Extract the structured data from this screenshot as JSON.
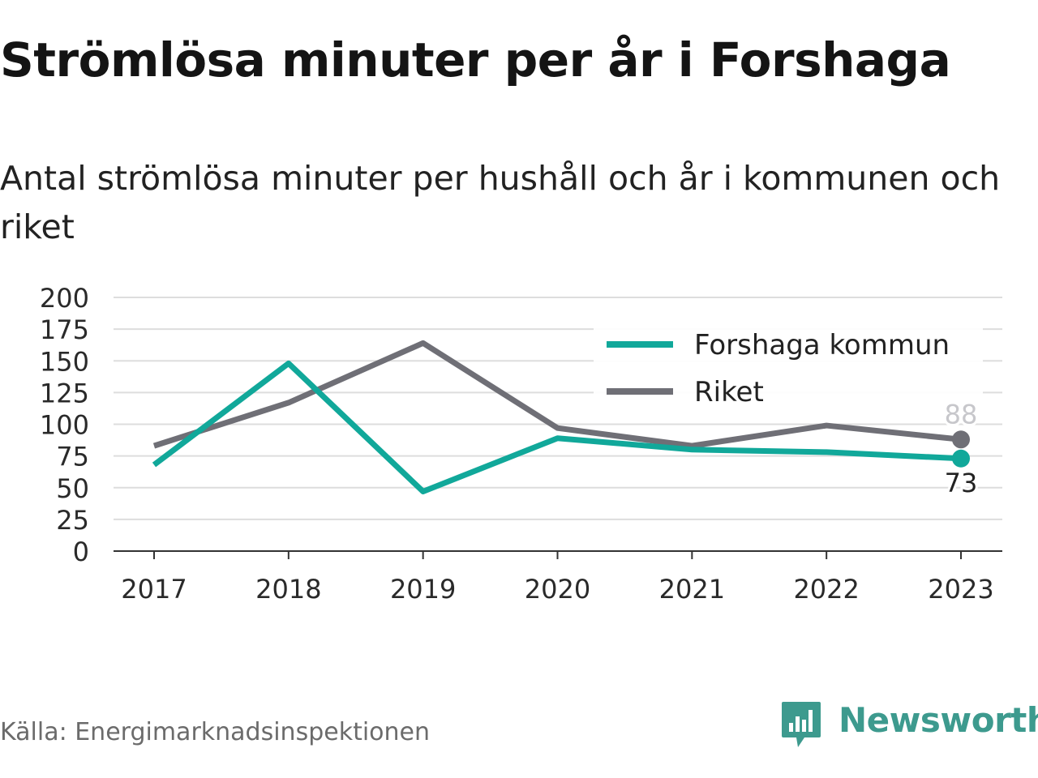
{
  "header": {
    "title": "Strömlösa minuter per år i Forshaga",
    "subtitle": "Antal strömlösa minuter per hushåll och år i kommunen och riket"
  },
  "footer": {
    "source": "Källa: Energimarknadsinspektionen",
    "brand": "Newsworthy"
  },
  "colors": {
    "forshaga": "#11a89a",
    "riket": "#6f6f76",
    "brand": "#3d9a8e",
    "grid": "#dddddd"
  },
  "chart_data": {
    "type": "line",
    "title": "Strömlösa minuter per år i Forshaga",
    "subtitle": "Antal strömlösa minuter per hushåll och år i kommunen och riket",
    "x": [
      "2017",
      "2018",
      "2019",
      "2020",
      "2021",
      "2022",
      "2023"
    ],
    "yticks": [
      0,
      25,
      50,
      75,
      100,
      125,
      150,
      175,
      200
    ],
    "ylim": [
      0,
      200
    ],
    "grid": true,
    "legend_position": "top-right",
    "series": [
      {
        "name": "Forshaga kommun",
        "color": "#11a89a",
        "values": [
          68,
          148,
          47,
          89,
          80,
          78,
          73
        ],
        "end_label": "73"
      },
      {
        "name": "Riket",
        "color": "#6f6f76",
        "values": [
          83,
          117,
          164,
          97,
          83,
          99,
          88
        ],
        "end_label": "88"
      }
    ]
  }
}
